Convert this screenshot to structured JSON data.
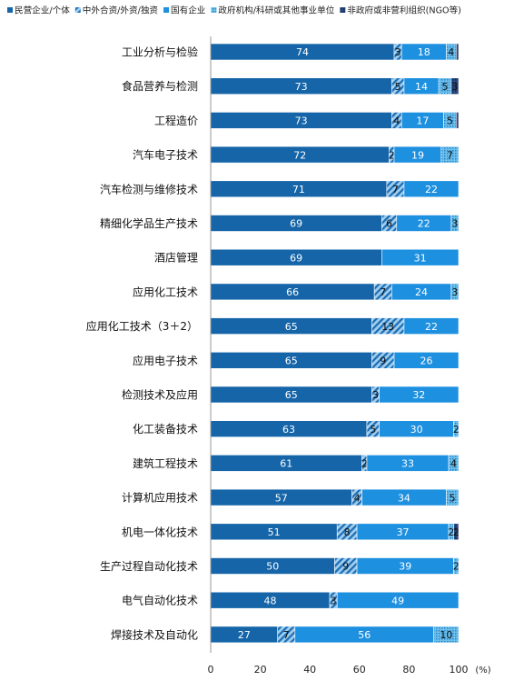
{
  "chart_data": {
    "type": "bar",
    "orientation": "horizontal",
    "stacked": true,
    "x_unit_label": "(%)",
    "xlim": [
      0,
      100
    ],
    "x_ticks": [
      "0",
      "20",
      "40",
      "60",
      "80",
      "100"
    ],
    "legend_position": "top",
    "grid": false,
    "categories": [
      "工业分析与检验",
      "食品营养与检测",
      "工程造价",
      "汽车电子技术",
      "汽车检测与维修技术",
      "精细化学品生产技术",
      "酒店管理",
      "应用化工技术",
      "应用化工技术（3＋2）",
      "应用电子技术",
      "检测技术及应用",
      "化工装备技术",
      "建筑工程技术",
      "计算机应用技术",
      "机电一体化技术",
      "生产过程自动化技术",
      "电气自动化技术",
      "焊接技术及自动化"
    ],
    "series": [
      {
        "name": "民营企业/个体",
        "color": "#1565A8",
        "pattern": "solid",
        "values": [
          74,
          73,
          73,
          72,
          71,
          69,
          69,
          66,
          65,
          65,
          65,
          63,
          61,
          57,
          51,
          50,
          48,
          27
        ]
      },
      {
        "name": "中外合资/外资/独资",
        "color": "#3A8FD0",
        "pattern": "hatch",
        "values": [
          3,
          5,
          4,
          2,
          7,
          6,
          0,
          7,
          13,
          9,
          3,
          5,
          2,
          4,
          8,
          9,
          3,
          7
        ]
      },
      {
        "name": "国有企业",
        "color": "#1E90E0",
        "pattern": "solid",
        "values": [
          18,
          14,
          17,
          19,
          22,
          22,
          31,
          24,
          22,
          26,
          32,
          30,
          33,
          34,
          37,
          39,
          49,
          56
        ]
      },
      {
        "name": "政府机构/科研或其他事业单位",
        "color": "#55B4E6",
        "pattern": "dots",
        "values": [
          4,
          5,
          5,
          7,
          0,
          3,
          0,
          3,
          0,
          0,
          0,
          2,
          4,
          5,
          2,
          2,
          0,
          10
        ]
      },
      {
        "name": "非政府或非营利组织(NGO等)",
        "color": "#1F3A68",
        "pattern": "grid",
        "values": [
          1,
          3,
          1,
          0,
          0,
          0,
          0,
          0,
          0,
          0,
          0,
          0,
          0,
          0,
          2,
          0,
          0,
          0
        ]
      }
    ],
    "data_labels": [
      [
        "74",
        "3",
        "18",
        "4",
        ""
      ],
      [
        "73",
        "5",
        "14",
        "5",
        "3"
      ],
      [
        "73",
        "4",
        "17",
        "5",
        ""
      ],
      [
        "72",
        "2",
        "19",
        "7",
        ""
      ],
      [
        "71",
        "7",
        "22",
        "",
        ""
      ],
      [
        "69",
        "6",
        "22",
        "3",
        ""
      ],
      [
        "69",
        "",
        "31",
        "",
        ""
      ],
      [
        "66",
        "7",
        "24",
        "3",
        ""
      ],
      [
        "65",
        "13",
        "22",
        "",
        ""
      ],
      [
        "65",
        "9",
        "26",
        "",
        ""
      ],
      [
        "65",
        "3",
        "32",
        "",
        ""
      ],
      [
        "63",
        "5",
        "30",
        "2",
        ""
      ],
      [
        "61",
        "2",
        "33",
        "4",
        ""
      ],
      [
        "57",
        "4",
        "34",
        "5",
        ""
      ],
      [
        "51",
        "8",
        "37",
        "2",
        "2"
      ],
      [
        "50",
        "9",
        "39",
        "2",
        ""
      ],
      [
        "48",
        "3",
        "49",
        "",
        ""
      ],
      [
        "27",
        "7",
        "56",
        "10",
        ""
      ]
    ]
  }
}
